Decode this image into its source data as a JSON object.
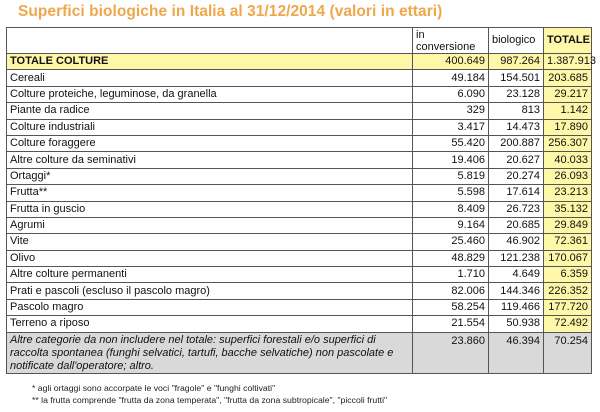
{
  "title": "Superfici biologiche in Italia al 31/12/2014 (valori in ettari)",
  "headers": {
    "conversion": [
      "in",
      "conversione"
    ],
    "organic": "biologico",
    "total": "TOTALE"
  },
  "total_row": {
    "label": "TOTALE COLTURE",
    "conversion": "400.649",
    "organic": "987.264",
    "total": "1.387.913"
  },
  "rows": [
    {
      "label": "Cereali",
      "conversion": "49.184",
      "organic": "154.501",
      "total": "203.685"
    },
    {
      "label": "Colture proteiche, leguminose, da granella",
      "conversion": "6.090",
      "organic": "23.128",
      "total": "29.217"
    },
    {
      "label": "Piante da radice",
      "conversion": "329",
      "organic": "813",
      "total": "1.142"
    },
    {
      "label": "Colture industriali",
      "conversion": "3.417",
      "organic": "14.473",
      "total": "17.890"
    },
    {
      "label": "Colture foraggere",
      "conversion": "55.420",
      "organic": "200.887",
      "total": "256.307"
    },
    {
      "label": "Altre colture da seminativi",
      "conversion": "19.406",
      "organic": "20.627",
      "total": "40.033"
    },
    {
      "label": "Ortaggi*",
      "conversion": "5.819",
      "organic": "20.274",
      "total": "26.093"
    },
    {
      "label": "Frutta**",
      "conversion": "5.598",
      "organic": "17.614",
      "total": "23.213"
    },
    {
      "label": "Frutta in guscio",
      "conversion": "8.409",
      "organic": "26.723",
      "total": "35.132"
    },
    {
      "label": "Agrumi",
      "conversion": "9.164",
      "organic": "20.685",
      "total": "29.849"
    },
    {
      "label": "Vite",
      "conversion": "25.460",
      "organic": "46.902",
      "total": "72.361"
    },
    {
      "label": "Olivo",
      "conversion": "48.829",
      "organic": "121.238",
      "total": "170.067"
    },
    {
      "label": "Altre colture permanenti",
      "conversion": "1.710",
      "organic": "4.649",
      "total": "6.359"
    },
    {
      "label": "Prati e pascoli (escluso il pascolo magro)",
      "conversion": "82.006",
      "organic": "144.346",
      "total": "226.352"
    },
    {
      "label": "Pascolo magro",
      "conversion": "58.254",
      "organic": "119.466",
      "total": "177.720"
    },
    {
      "label": "Terreno a riposo",
      "conversion": "21.554",
      "organic": "50.938",
      "total": "72.492"
    }
  ],
  "other_row": {
    "label": "Altre categorie da non includere nel totale: superfici forestali e/o superfici di raccolta spontanea (funghi selvatici, tartufi, bacche selvatiche) non pascolate e notificate dall'operatore; altro.",
    "conversion": "23.860",
    "organic": "46.394",
    "total": "70.254"
  },
  "notes": [
    "* agli ortaggi sono accorpate le voci \"fragole\" e \"funghi coltivati\"",
    "** la frutta comprende \"frutta da zona temperata\", \"frutta da zona subtropicale\", \"piccoli frutti\""
  ]
}
